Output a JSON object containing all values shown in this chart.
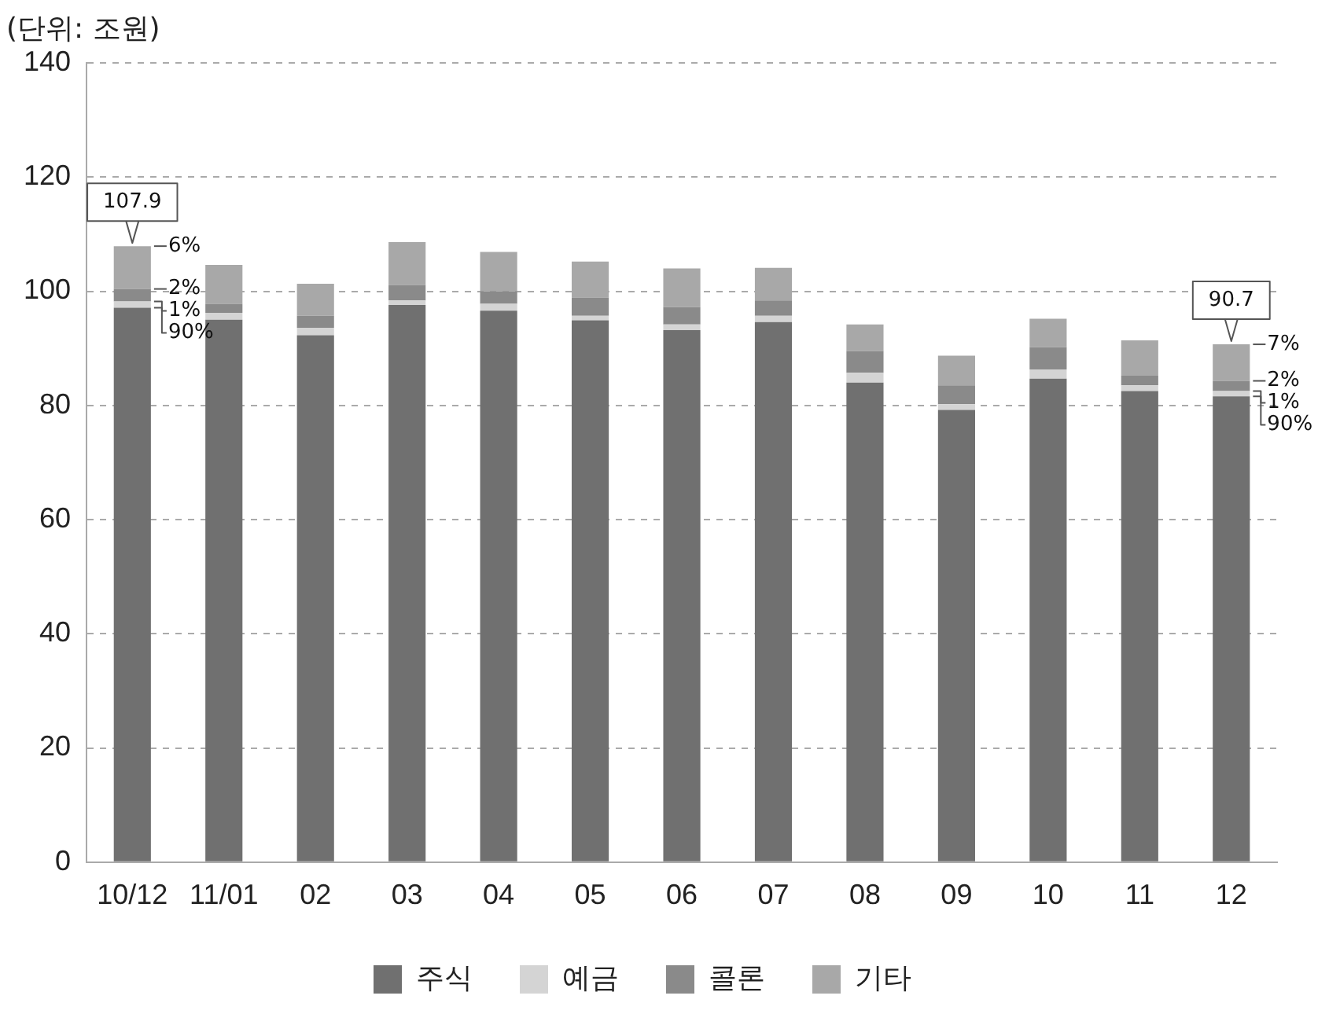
{
  "chart_data": {
    "type": "bar",
    "stacked": true,
    "ylabel": "(단위: 조원)",
    "categories": [
      "10/12",
      "11/01",
      "02",
      "03",
      "04",
      "05",
      "06",
      "07",
      "08",
      "09",
      "10",
      "11",
      "12"
    ],
    "series": [
      {
        "name": "주식",
        "color": "#707070",
        "values": [
          97.1,
          95.0,
          92.3,
          97.6,
          96.6,
          94.9,
          93.2,
          94.6,
          84.0,
          79.2,
          84.7,
          82.5,
          81.6
        ]
      },
      {
        "name": "예금",
        "color": "#d4d4d4",
        "values": [
          1.1,
          1.2,
          1.3,
          0.8,
          1.2,
          0.8,
          1.0,
          1.1,
          1.7,
          1.0,
          1.6,
          1.0,
          0.9
        ]
      },
      {
        "name": "콜론",
        "color": "#8a8a8a",
        "values": [
          2.2,
          1.6,
          2.1,
          2.7,
          2.2,
          3.2,
          3.0,
          2.7,
          3.8,
          3.3,
          3.9,
          1.7,
          1.8
        ]
      },
      {
        "name": "기타",
        "color": "#a8a8a8",
        "values": [
          7.5,
          6.8,
          5.6,
          7.5,
          6.9,
          6.3,
          6.8,
          5.7,
          4.7,
          5.2,
          5.0,
          6.2,
          6.4
        ]
      }
    ],
    "ylim": [
      0,
      140
    ],
    "yticks": [
      0,
      20,
      40,
      60,
      80,
      100,
      120,
      140
    ],
    "grid": "y",
    "legend": "bottom",
    "annotations": [
      {
        "text": "107.9",
        "x": "10/12",
        "y": 107.9
      },
      {
        "text": "6%",
        "x": "10/12",
        "y": 107.9
      },
      {
        "text": "2%",
        "x": "10/12",
        "y": 100.4
      },
      {
        "text": "1%",
        "x": "10/12",
        "y": 98.2
      },
      {
        "text": "90%",
        "x": "10/12",
        "y": 97.1
      },
      {
        "text": "90.7",
        "x": "12",
        "y": 90.7
      },
      {
        "text": "7%",
        "x": "12",
        "y": 90.7
      },
      {
        "text": "2%",
        "x": "12",
        "y": 84.3
      },
      {
        "text": "1%",
        "x": "12",
        "y": 82.5
      },
      {
        "text": "90%",
        "x": "12",
        "y": 81.6
      }
    ]
  }
}
